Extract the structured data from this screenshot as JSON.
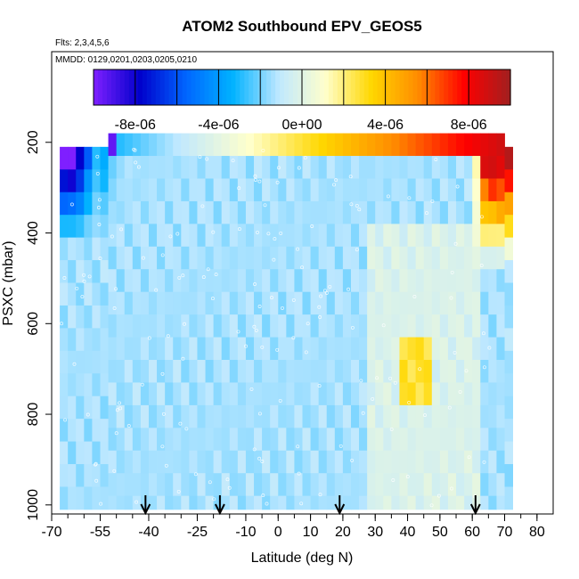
{
  "chart_data": {
    "type": "heatmap",
    "title": "ATOM2 Southbound EPV_GEOS5",
    "subtitle_flights": "Flts: 2,3,4,5,6",
    "subtitle_dates": "MMDD: 0129,0201,0203,0205,0210",
    "xlabel": "Latitude (deg N)",
    "ylabel": "PSXC (mbar)",
    "xlim": [
      -70,
      85
    ],
    "ylim": [
      1020,
      0
    ],
    "x_ticks": [
      -70,
      -55,
      -40,
      -25,
      -10,
      0,
      10,
      20,
      30,
      40,
      50,
      60,
      70,
      80
    ],
    "x_tick_labels": [
      "-70",
      "-55",
      "-40",
      "-25",
      "-10",
      "0",
      "10",
      "20",
      "30",
      "40",
      "50",
      "60",
      "70",
      "80"
    ],
    "y_ticks": [
      200,
      400,
      600,
      800,
      1000
    ],
    "y_tick_labels": [
      "200",
      "400",
      "600",
      "800",
      "1000"
    ],
    "colorbar": {
      "range": [
        -1e-05,
        1e-05
      ],
      "ticks": [
        -8e-06,
        -4e-06,
        0,
        4e-06,
        8e-06
      ],
      "tick_labels": [
        "-8e-06",
        "-4e-06",
        "0e+00",
        "4e-06",
        "8e-06"
      ],
      "colors": [
        "#7f1fff",
        "#0000cc",
        "#0066ff",
        "#00b2ff",
        "#bfe8ff",
        "#ffffcc",
        "#ffd700",
        "#ff8c00",
        "#ff0000",
        "#a02020"
      ]
    },
    "flight_markers_lat": [
      -41,
      -18,
      19,
      61
    ],
    "field_description": "EPV near 0 (light blue/white) over most of the section; strong negative EPV (deep blue) near 200-400 mbar south of -55; strong positive EPV (red) near 200-300 mbar north of 60; top row 180-200 mbar transitions from white at -30 to dark red at 70."
  }
}
